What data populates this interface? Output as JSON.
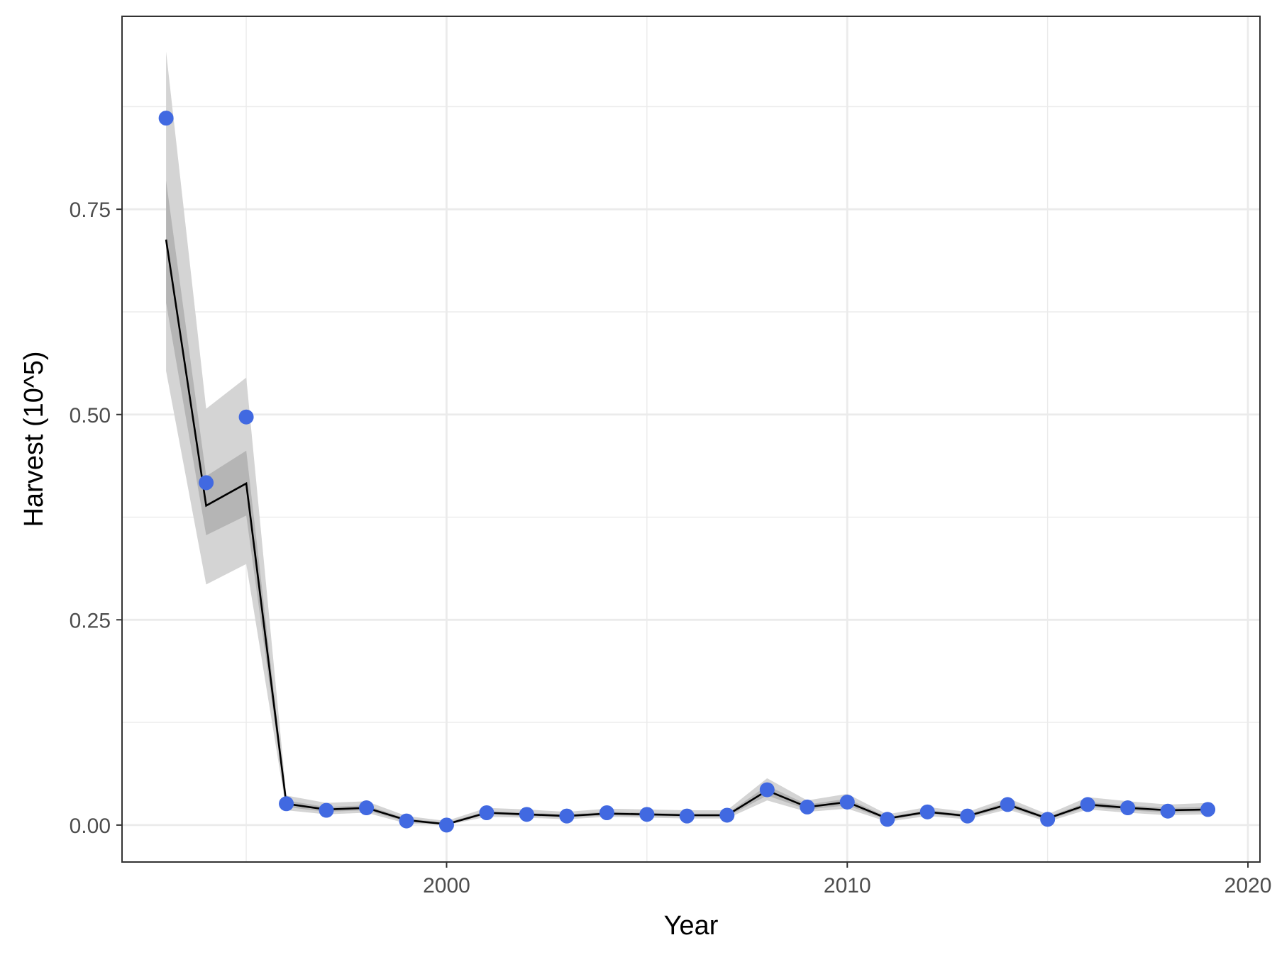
{
  "chart_data": {
    "type": "line",
    "xlabel": "Year",
    "ylabel": "Harvest (10^5)",
    "xlim": [
      1991.9,
      2020.3
    ],
    "ylim": [
      -0.045,
      0.985
    ],
    "x_ticks": [
      2000,
      2010,
      2020
    ],
    "x_tick_labels": [
      "2000",
      "2010",
      "2020"
    ],
    "y_ticks": [
      0,
      0.25,
      0.5,
      0.75
    ],
    "y_tick_labels": [
      "0.00",
      "0.25",
      "0.50",
      "0.75"
    ],
    "grid": true,
    "colors": {
      "points": "#4169e1",
      "line": "#000000",
      "outer_band": "#d4d4d4",
      "inner_band": "#ababab",
      "grid": "#ebebeb",
      "border": "#333333"
    },
    "series": [
      {
        "type": "scatter",
        "x": [
          1993,
          1994,
          1995,
          1996,
          1997,
          1998,
          1999,
          2000,
          2001,
          2002,
          2003,
          2004,
          2005,
          2006,
          2007,
          2008,
          2009,
          2010,
          2011,
          2012,
          2013,
          2014,
          2015,
          2016,
          2017,
          2018,
          2019
        ],
        "y": [
          0.861,
          0.417,
          0.497,
          0.026,
          0.018,
          0.021,
          0.005,
          0.0,
          0.015,
          0.013,
          0.011,
          0.015,
          0.013,
          0.011,
          0.012,
          0.043,
          0.022,
          0.028,
          0.007,
          0.016,
          0.011,
          0.025,
          0.007,
          0.025,
          0.021,
          0.017,
          0.019
        ]
      },
      {
        "type": "line",
        "x": [
          1993,
          1994,
          1995,
          1996,
          1997,
          1998,
          1999,
          2000,
          2001,
          2002,
          2003,
          2004,
          2005,
          2006,
          2007,
          2008,
          2009,
          2010,
          2011,
          2012,
          2013,
          2014,
          2015,
          2016,
          2017,
          2018,
          2019
        ],
        "y": [
          0.713,
          0.389,
          0.416,
          0.026,
          0.019,
          0.021,
          0.006,
          0.001,
          0.015,
          0.013,
          0.011,
          0.014,
          0.013,
          0.012,
          0.012,
          0.042,
          0.022,
          0.028,
          0.008,
          0.016,
          0.011,
          0.025,
          0.008,
          0.025,
          0.021,
          0.018,
          0.019
        ],
        "inner_lower": [
          0.636,
          0.353,
          0.377,
          0.022,
          0.016,
          0.018,
          0.004,
          0.0,
          0.013,
          0.011,
          0.009,
          0.012,
          0.011,
          0.01,
          0.01,
          0.036,
          0.019,
          0.024,
          0.006,
          0.014,
          0.009,
          0.022,
          0.006,
          0.022,
          0.018,
          0.015,
          0.016
        ],
        "inner_upper": [
          0.785,
          0.425,
          0.456,
          0.03,
          0.022,
          0.024,
          0.008,
          0.003,
          0.017,
          0.015,
          0.013,
          0.016,
          0.015,
          0.014,
          0.014,
          0.048,
          0.025,
          0.032,
          0.01,
          0.018,
          0.013,
          0.028,
          0.01,
          0.028,
          0.024,
          0.021,
          0.022
        ],
        "outer_lower": [
          0.553,
          0.293,
          0.318,
          0.018,
          0.013,
          0.015,
          0.002,
          0.0,
          0.01,
          0.009,
          0.007,
          0.01,
          0.009,
          0.008,
          0.008,
          0.03,
          0.016,
          0.02,
          0.004,
          0.011,
          0.007,
          0.019,
          0.004,
          0.019,
          0.015,
          0.012,
          0.013
        ],
        "outer_upper": [
          0.942,
          0.507,
          0.545,
          0.036,
          0.027,
          0.029,
          0.011,
          0.005,
          0.021,
          0.019,
          0.016,
          0.02,
          0.019,
          0.018,
          0.018,
          0.057,
          0.03,
          0.038,
          0.013,
          0.022,
          0.016,
          0.033,
          0.013,
          0.034,
          0.029,
          0.025,
          0.027
        ]
      }
    ]
  }
}
